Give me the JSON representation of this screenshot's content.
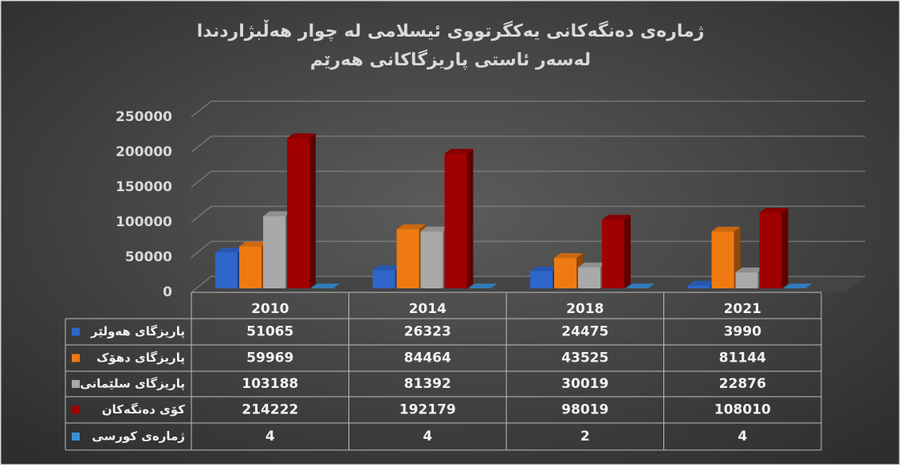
{
  "chart_data": {
    "type": "bar3d",
    "title_lines": [
      "ژمارەی دەنگەکانی یەکگرتووی ئیسلامی لە چوار هەڵبژاردندا",
      "لەسەر ئاستی پاریزگاکانی هەرێم"
    ],
    "categories": [
      "2010",
      "2014",
      "2018",
      "2021"
    ],
    "series": [
      {
        "name": "پاریزگای هەولێر",
        "color": "#2f66cc",
        "values": [
          51065,
          26323,
          24475,
          3990
        ]
      },
      {
        "name": "پاریزگای دهۆک",
        "color": "#f07a12",
        "values": [
          59969,
          84464,
          43525,
          81144
        ]
      },
      {
        "name": "پاریزگای سلێمانی",
        "color": "#a9a9a9",
        "values": [
          103188,
          81392,
          30019,
          22876
        ]
      },
      {
        "name": "کۆی دەنگەکان",
        "color": "#a00000",
        "values": [
          214222,
          192179,
          98019,
          108010
        ]
      },
      {
        "name": "ژمارەی کورسی",
        "color": "#3b8fd9",
        "values": [
          4,
          4,
          2,
          4
        ]
      }
    ],
    "ylim": [
      0,
      250000
    ],
    "yticks": [
      0,
      50000,
      100000,
      150000,
      200000,
      250000
    ],
    "grid": true,
    "data_table": true
  }
}
